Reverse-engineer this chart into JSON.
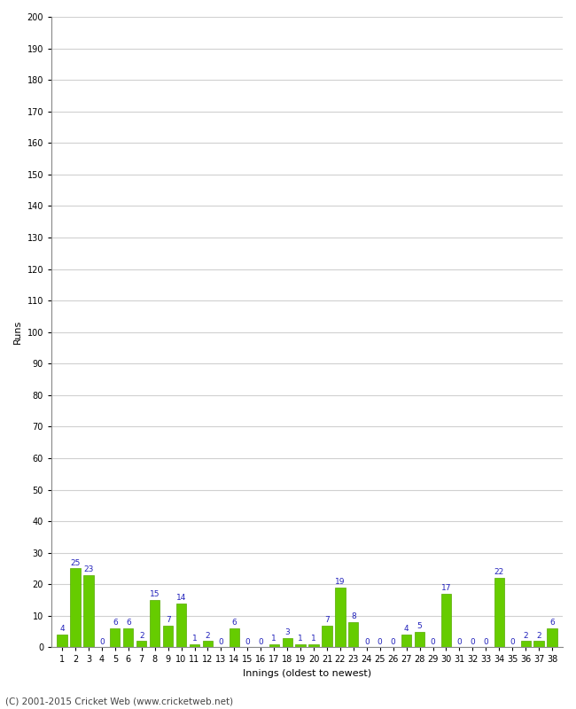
{
  "innings": [
    1,
    2,
    3,
    4,
    5,
    6,
    7,
    8,
    9,
    10,
    11,
    12,
    13,
    14,
    15,
    16,
    17,
    18,
    19,
    20,
    21,
    22,
    23,
    24,
    25,
    26,
    27,
    28,
    29,
    30,
    31,
    32,
    33,
    34,
    35,
    36,
    37,
    38
  ],
  "runs": [
    4,
    25,
    23,
    0,
    6,
    6,
    2,
    15,
    7,
    14,
    1,
    2,
    0,
    6,
    0,
    0,
    1,
    3,
    1,
    1,
    7,
    19,
    8,
    0,
    0,
    0,
    4,
    5,
    0,
    17,
    0,
    0,
    0,
    22,
    0,
    2,
    2,
    6
  ],
  "bar_color": "#66cc00",
  "bar_edge_color": "#55aa00",
  "label_color": "#2222bb",
  "fig_background": "#ffffff",
  "plot_background": "#ffffff",
  "ylabel": "Runs",
  "xlabel": "Innings (oldest to newest)",
  "ylim": [
    0,
    200
  ],
  "yticks": [
    0,
    10,
    20,
    30,
    40,
    50,
    60,
    70,
    80,
    90,
    100,
    110,
    120,
    130,
    140,
    150,
    160,
    170,
    180,
    190,
    200
  ],
  "grid_color": "#d0d0d0",
  "footer": "(C) 2001-2015 Cricket Web (www.cricketweb.net)",
  "label_fontsize": 6.5,
  "ylabel_fontsize": 8,
  "xlabel_fontsize": 8,
  "tick_fontsize": 7,
  "footer_fontsize": 7.5
}
